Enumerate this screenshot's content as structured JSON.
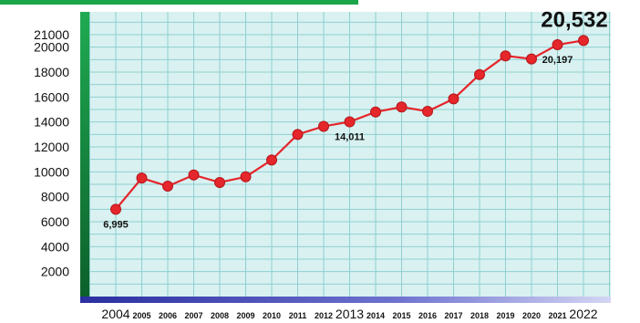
{
  "colors": {
    "grid_bg": "#d9f1f1",
    "grid_line": "#8fcfcf",
    "accent_green": "#1aa64a",
    "axis_blue": "#3b3fb0",
    "line": "#e5262b",
    "marker": "#e5262b"
  },
  "chart_data": {
    "type": "line",
    "grid": true,
    "x": [
      "2004",
      "2005",
      "2006",
      "2007",
      "2008",
      "2009",
      "2010",
      "2011",
      "2012",
      "2013",
      "2014",
      "2015",
      "2016",
      "2017",
      "2018",
      "2019",
      "2020",
      "2021",
      "2022"
    ],
    "large_x_ticks": [
      "2004",
      "2013",
      "2022"
    ],
    "series": [
      {
        "values": [
          6995,
          9500,
          8850,
          9750,
          9150,
          9600,
          10950,
          13000,
          13650,
          14011,
          14800,
          15200,
          14850,
          15850,
          17800,
          19300,
          19050,
          20197,
          20532
        ]
      }
    ],
    "yticks": [
      2000,
      4000,
      6000,
      8000,
      10000,
      12000,
      14000,
      16000,
      18000,
      20000,
      21000
    ],
    "ylim": [
      0,
      21000
    ],
    "annotations": [
      {
        "x": "2004",
        "text": "6,995",
        "position": "below"
      },
      {
        "x": "2013",
        "text": "14,011",
        "position": "below"
      },
      {
        "x": "2021",
        "text": "20,197",
        "position": "below"
      },
      {
        "x": "2022",
        "text": "20,532",
        "position": "above",
        "style": "large"
      }
    ]
  }
}
